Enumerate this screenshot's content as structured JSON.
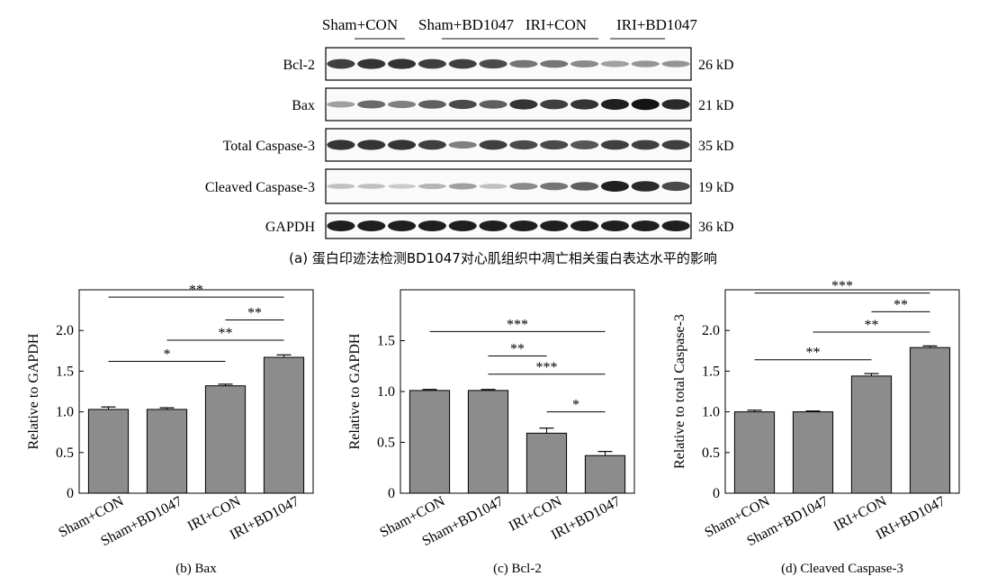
{
  "western_blot": {
    "groups": [
      "Sham+CON",
      "Sham+BD1047",
      "IRI+CON",
      "IRI+BD1047"
    ],
    "rows": [
      {
        "protein": "Bcl-2",
        "size": "26 kD",
        "intensity": [
          0.8,
          0.85,
          0.85,
          0.8,
          0.8,
          0.75,
          0.55,
          0.55,
          0.45,
          0.35,
          0.4,
          0.4
        ]
      },
      {
        "protein": "Bax",
        "size": "21 kD",
        "intensity": [
          0.35,
          0.6,
          0.5,
          0.65,
          0.75,
          0.65,
          0.85,
          0.8,
          0.85,
          0.95,
          1.0,
          0.9
        ]
      },
      {
        "protein": "Total Caspase-3",
        "size": "35 kD",
        "intensity": [
          0.85,
          0.85,
          0.85,
          0.8,
          0.5,
          0.8,
          0.75,
          0.75,
          0.7,
          0.8,
          0.8,
          0.8
        ]
      },
      {
        "protein": "Cleaved Caspase-3",
        "size": "19 kD",
        "intensity": [
          0.2,
          0.2,
          0.15,
          0.25,
          0.35,
          0.2,
          0.45,
          0.55,
          0.65,
          0.95,
          0.9,
          0.75
        ]
      },
      {
        "protein": "GAPDH",
        "size": "36 kD",
        "intensity": [
          0.95,
          0.95,
          0.95,
          0.95,
          0.95,
          0.95,
          0.95,
          0.95,
          0.95,
          0.95,
          0.95,
          0.95
        ]
      }
    ],
    "caption": "(a) 蛋白印迹法检测BD1047对心肌组织中凋亡相关蛋白表达水平的影响"
  },
  "chart_data": [
    {
      "type": "bar",
      "caption": "(b) Bax",
      "ylabel": "Relative to GAPDH",
      "categories": [
        "Sham+CON",
        "Sham+BD1047",
        "IRI+CON",
        "IRI+BD1047"
      ],
      "values": [
        1.03,
        1.03,
        1.32,
        1.67
      ],
      "errors": [
        0.03,
        0.02,
        0.02,
        0.03
      ],
      "ylim": [
        0,
        2.5
      ],
      "yticks": [
        "0",
        "0.5",
        "1.0",
        "1.5",
        "2.0"
      ],
      "significance": [
        {
          "from": 0,
          "to": 3,
          "label": "**",
          "y": 2.41
        },
        {
          "from": 2,
          "to": 3,
          "label": "**",
          "y": 2.13
        },
        {
          "from": 1,
          "to": 3,
          "label": "**",
          "y": 1.88
        },
        {
          "from": 0,
          "to": 2,
          "label": "*",
          "y": 1.62
        }
      ]
    },
    {
      "type": "bar",
      "caption": "(c) Bcl-2",
      "ylabel": "Relative to GAPDH",
      "categories": [
        "Sham+CON",
        "Sham+BD1047",
        "IRI+CON",
        "IRI+BD1047"
      ],
      "values": [
        1.01,
        1.01,
        0.59,
        0.37
      ],
      "errors": [
        0.01,
        0.01,
        0.05,
        0.04
      ],
      "ylim": [
        0,
        2.0
      ],
      "yticks": [
        "0",
        "0.5",
        "1.0",
        "1.5"
      ],
      "significance": [
        {
          "from": 0,
          "to": 3,
          "label": "***",
          "y": 1.59
        },
        {
          "from": 1,
          "to": 2,
          "label": "**",
          "y": 1.35
        },
        {
          "from": 1,
          "to": 3,
          "label": "***",
          "y": 1.17
        },
        {
          "from": 2,
          "to": 3,
          "label": "*",
          "y": 0.8
        }
      ]
    },
    {
      "type": "bar",
      "caption": "(d) Cleaved Caspase-3",
      "ylabel": "Relative to total Caspase-3",
      "categories": [
        "Sham+CON",
        "Sham+BD1047",
        "IRI+CON",
        "IRI+BD1047"
      ],
      "values": [
        1.0,
        1.0,
        1.44,
        1.79
      ],
      "errors": [
        0.02,
        0.01,
        0.03,
        0.02
      ],
      "ylim": [
        0,
        2.5
      ],
      "yticks": [
        "0",
        "0.5",
        "1.0",
        "1.5",
        "2.0"
      ],
      "significance": [
        {
          "from": 0,
          "to": 3,
          "label": "***",
          "y": 2.46
        },
        {
          "from": 2,
          "to": 3,
          "label": "**",
          "y": 2.23
        },
        {
          "from": 1,
          "to": 3,
          "label": "**",
          "y": 1.98
        },
        {
          "from": 0,
          "to": 2,
          "label": "**",
          "y": 1.64
        }
      ]
    }
  ]
}
